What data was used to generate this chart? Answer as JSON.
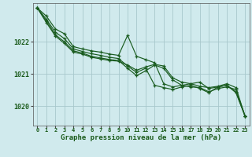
{
  "xlabel": "Graphe pression niveau de la mer (hPa)",
  "background_color": "#d0eaed",
  "grid_color": "#a8c8cc",
  "line_color": "#1a5c20",
  "xlim": [
    -0.5,
    23.5
  ],
  "ylim": [
    1019.4,
    1023.2
  ],
  "yticks": [
    1020,
    1021,
    1022
  ],
  "xticks": [
    0,
    1,
    2,
    3,
    4,
    5,
    6,
    7,
    8,
    9,
    10,
    11,
    12,
    13,
    14,
    15,
    16,
    17,
    18,
    19,
    20,
    21,
    22,
    23
  ],
  "series": [
    [
      1023.05,
      1022.8,
      1022.4,
      1022.25,
      1021.85,
      1021.78,
      1021.72,
      1021.68,
      1021.62,
      1021.58,
      1022.2,
      1021.55,
      1021.45,
      1021.35,
      1020.7,
      1020.6,
      1020.65,
      1020.7,
      1020.75,
      1020.55,
      1020.6,
      1020.65,
      1020.45,
      1019.7
    ],
    [
      1023.05,
      1022.7,
      1022.3,
      1022.1,
      1021.78,
      1021.7,
      1021.63,
      1021.58,
      1021.52,
      1021.48,
      1021.25,
      1021.05,
      1021.18,
      1020.65,
      1020.58,
      1020.52,
      1020.6,
      1020.65,
      1020.55,
      1020.42,
      1020.6,
      1020.65,
      1020.42,
      1019.7
    ],
    [
      1023.05,
      1022.65,
      1022.22,
      1022.0,
      1021.72,
      1021.65,
      1021.55,
      1021.5,
      1021.45,
      1021.42,
      1021.18,
      1020.95,
      1021.1,
      1021.28,
      1021.18,
      1020.82,
      1020.65,
      1020.6,
      1020.58,
      1020.45,
      1020.55,
      1020.6,
      1020.52,
      1019.7
    ],
    [
      1023.05,
      1022.6,
      1022.18,
      1021.95,
      1021.68,
      1021.62,
      1021.52,
      1021.47,
      1021.42,
      1021.4,
      1021.28,
      1021.12,
      1021.22,
      1021.3,
      1021.25,
      1020.88,
      1020.75,
      1020.7,
      1020.62,
      1020.58,
      1020.62,
      1020.7,
      1020.58,
      1019.7
    ]
  ]
}
